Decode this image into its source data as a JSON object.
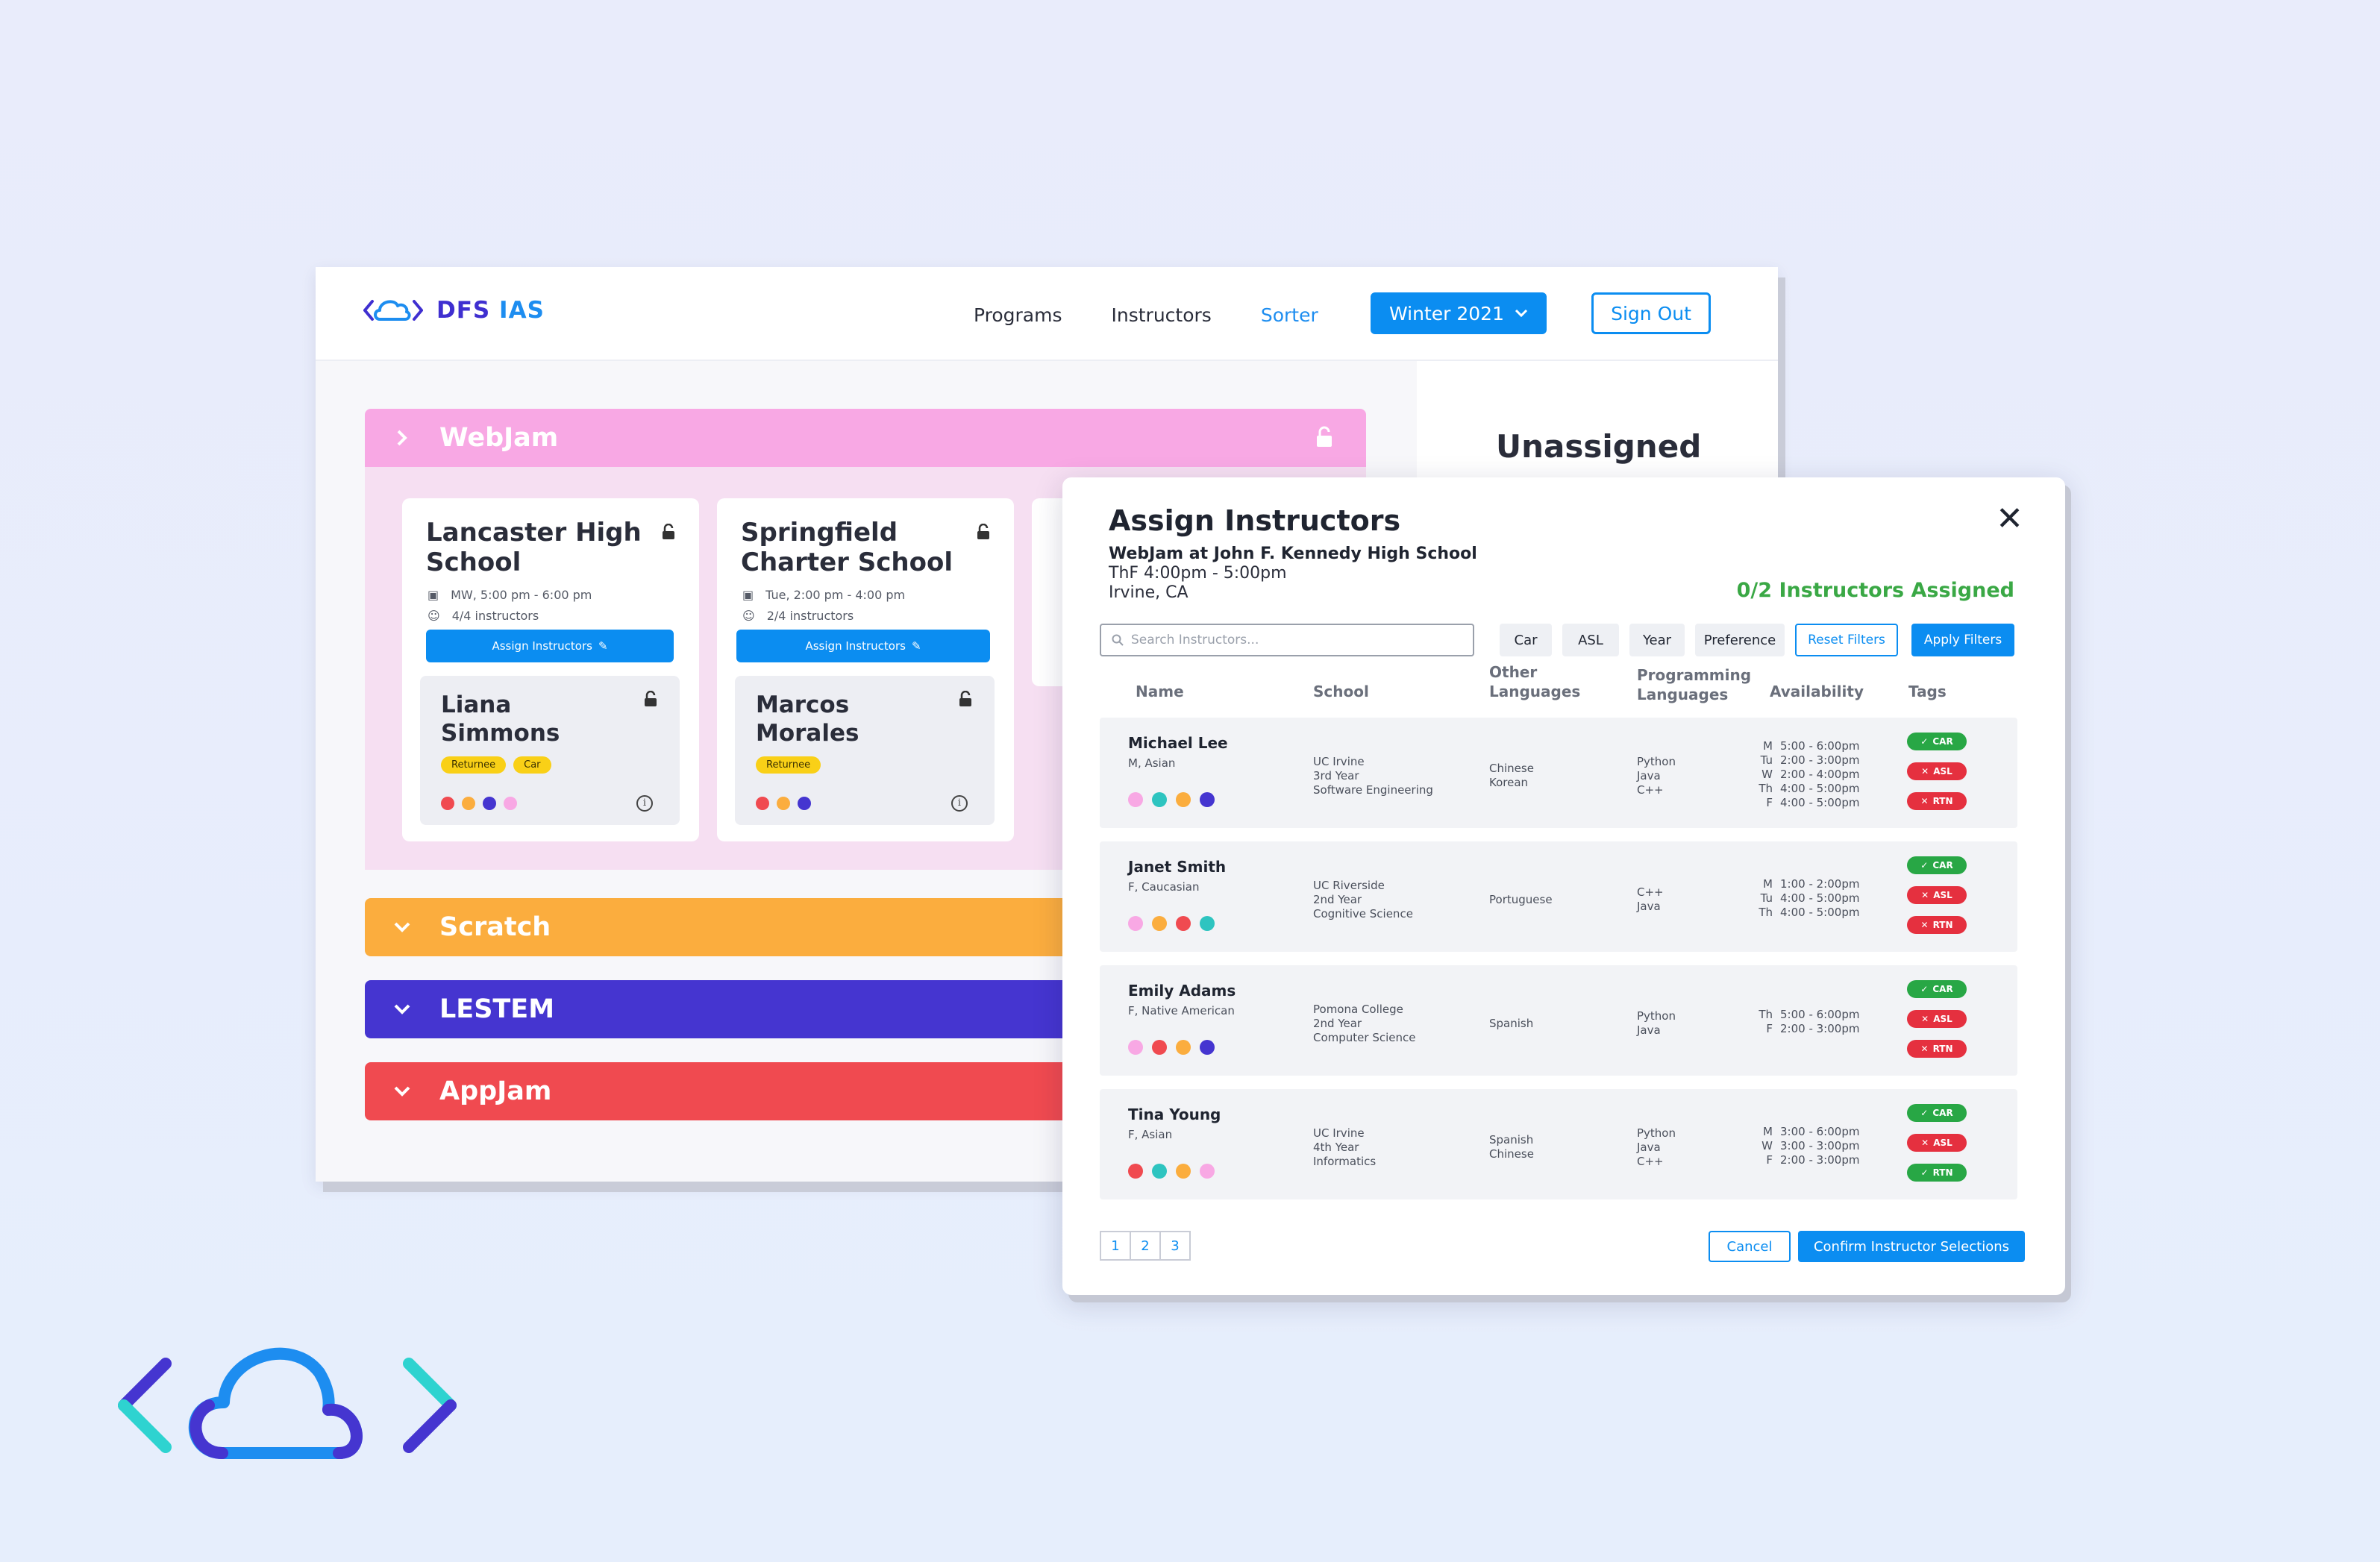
{
  "app": {
    "logo_text_a": "DFS",
    "logo_text_b": " IAS",
    "nav": [
      "Programs",
      "Instructors",
      "Sorter"
    ],
    "season_label": "Winter 2021",
    "signout_label": "Sign Out",
    "sidebar_title": "Unassigned"
  },
  "programs": {
    "webjam": "WebJam",
    "scratch": "Scratch",
    "lestem": "LESTEM",
    "appjam": "AppJam"
  },
  "schools": [
    {
      "title": "Lancaster High School",
      "schedule": "MW, 5:00 pm - 6:00 pm",
      "count": "4/4 instructors",
      "assign_label": "Assign Instructors",
      "instructor": {
        "name": "Liana Simmons",
        "tags": [
          "Returnee",
          "Car"
        ]
      }
    },
    {
      "title": "Springfield Charter School",
      "schedule": "Tue, 2:00 pm - 4:00 pm",
      "count": "2/4 instructors",
      "assign_label": "Assign Instructors",
      "instructor": {
        "name": "Marcos Morales",
        "tags": [
          "Returnee"
        ]
      }
    }
  ],
  "modal": {
    "title": "Assign Instructors",
    "subtitle": "WebJam at John F. Kennedy High School",
    "time": "ThF 4:00pm - 5:00pm",
    "location": "Irvine, CA",
    "assigned": "0/2 Instructors Assigned",
    "search_placeholder": "Search Instructors...",
    "filters": [
      "Car",
      "ASL",
      "Year",
      "Preference"
    ],
    "reset_label": "Reset Filters",
    "apply_label": "Apply Filters",
    "columns": {
      "name": "Name",
      "school": "School",
      "other_lang_1": "Other",
      "other_lang_2": "Languages",
      "prog_lang_1": "Programming",
      "prog_lang_2": "Languages",
      "availability": "Availability",
      "tags": "Tags"
    },
    "pages": [
      "1",
      "2",
      "3"
    ],
    "cancel_label": "Cancel",
    "confirm_label": "Confirm Instructor Selections"
  },
  "instructors": [
    {
      "name": "Michael Lee",
      "demo": "M, Asian",
      "school": [
        "UC Irvine",
        "3rd Year",
        "Software Engineering"
      ],
      "other_languages": [
        "Chinese",
        "Korean"
      ],
      "programming": [
        "Python",
        "Java",
        "C++"
      ],
      "availability": [
        [
          "M",
          "5:00 - 6:00pm"
        ],
        [
          "Tu",
          "2:00 - 3:00pm"
        ],
        [
          "W",
          "2:00 - 4:00pm"
        ],
        [
          "Th",
          "4:00 - 5:00pm"
        ],
        [
          "F",
          "4:00 - 5:00pm"
        ]
      ],
      "tags": [
        [
          "CAR",
          "ok"
        ],
        [
          "ASL",
          "no"
        ],
        [
          "RTN",
          "no"
        ]
      ]
    },
    {
      "name": "Janet Smith",
      "demo": "F, Caucasian",
      "school": [
        "UC Riverside",
        "2nd Year",
        "Cognitive Science"
      ],
      "other_languages": [
        "Portuguese"
      ],
      "programming": [
        "C++",
        "Java"
      ],
      "availability": [
        [
          "M",
          "1:00 - 2:00pm"
        ],
        [
          "Tu",
          "4:00 - 5:00pm"
        ],
        [
          "Th",
          "4:00 - 5:00pm"
        ]
      ],
      "tags": [
        [
          "CAR",
          "ok"
        ],
        [
          "ASL",
          "no"
        ],
        [
          "RTN",
          "no"
        ]
      ]
    },
    {
      "name": "Emily Adams",
      "demo": "F, Native American",
      "school": [
        "Pomona College",
        "2nd Year",
        "Computer Science"
      ],
      "other_languages": [
        "Spanish"
      ],
      "programming": [
        "Python",
        "Java"
      ],
      "availability": [
        [
          "Th",
          "5:00 - 6:00pm"
        ],
        [
          "F",
          "2:00 - 3:00pm"
        ]
      ],
      "tags": [
        [
          "CAR",
          "ok"
        ],
        [
          "ASL",
          "no"
        ],
        [
          "RTN",
          "no"
        ]
      ]
    },
    {
      "name": "Tina Young",
      "demo": "F, Asian",
      "school": [
        "UC Irvine",
        "4th Year",
        "Informatics"
      ],
      "other_languages": [
        "Spanish",
        "Chinese"
      ],
      "programming": [
        "Python",
        "Java",
        "C++"
      ],
      "availability": [
        [
          "M",
          "3:00 - 6:00pm"
        ],
        [
          "W",
          "3:00 - 3:00pm"
        ],
        [
          "F",
          "2:00 - 3:00pm"
        ]
      ],
      "tags": [
        [
          "CAR",
          "ok"
        ],
        [
          "ASL",
          "no"
        ],
        [
          "RTN",
          "ok"
        ]
      ]
    }
  ],
  "colors": {
    "brand_blue": "#0b8df1",
    "brand_purple": "#3f2fd0",
    "webjam": "#f8a8e4",
    "scratch": "#fbad3e",
    "lestem": "#4535d0",
    "appjam": "#f04a50",
    "success": "#3aa845"
  }
}
